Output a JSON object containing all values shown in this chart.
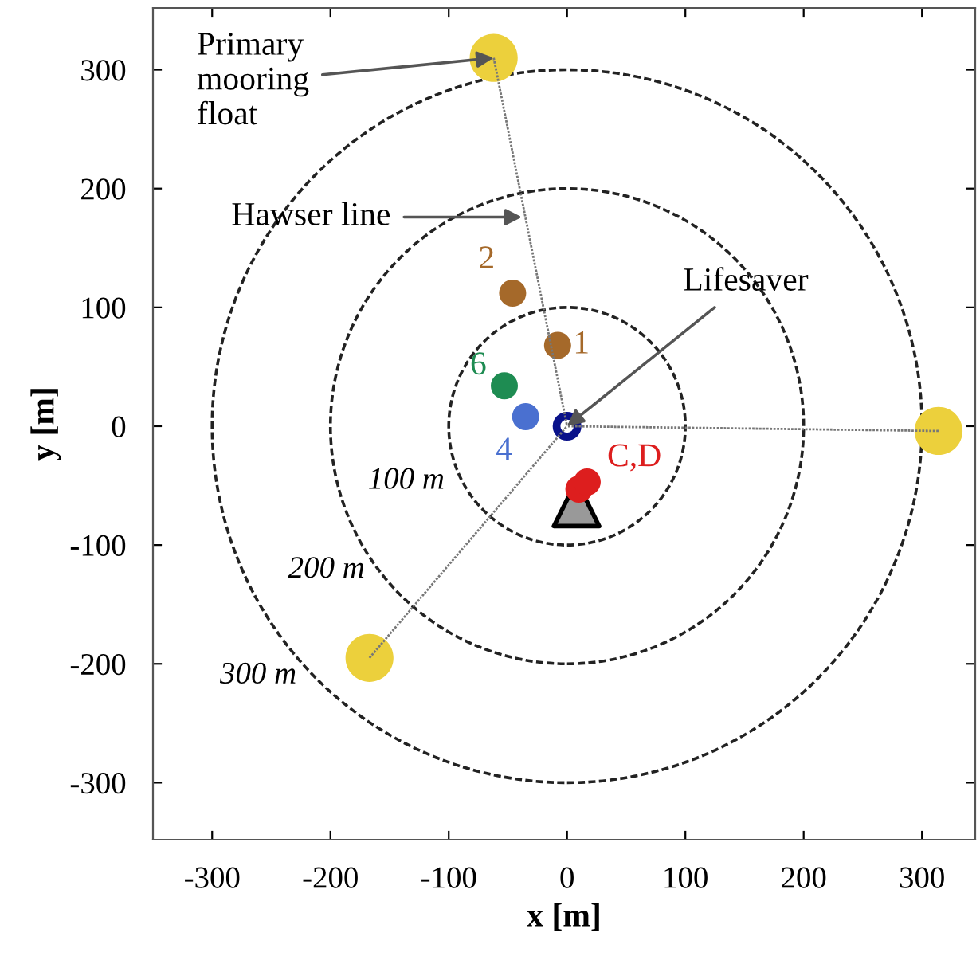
{
  "chart_data": {
    "type": "scatter",
    "xlabel": "x [m]",
    "ylabel": "y [m]",
    "xlim": [
      -350,
      345
    ],
    "ylim": [
      -348,
      352
    ],
    "xticks": [
      -300,
      -200,
      -100,
      0,
      100,
      200,
      300
    ],
    "yticks": [
      -300,
      -200,
      -100,
      0,
      100,
      200,
      300
    ],
    "series": [
      {
        "type": "line",
        "color": "#777777",
        "line_style": "dotted",
        "x": [
          -62,
          0
        ],
        "values": [
          310,
          0
        ]
      },
      {
        "type": "line",
        "color": "#777777",
        "line_style": "dotted",
        "x": [
          314,
          0
        ],
        "values": [
          -4,
          0
        ]
      },
      {
        "type": "line",
        "color": "#777777",
        "line_style": "dotted",
        "x": [
          -167,
          0
        ],
        "values": [
          -195,
          0
        ]
      },
      {
        "color": "#ecd03c",
        "marker": "circle",
        "x": [
          -62,
          314,
          -167
        ],
        "values": [
          310,
          -4,
          -195
        ]
      },
      {
        "name": "1",
        "color": "#a5692a",
        "marker": "circle",
        "x": [
          -8
        ],
        "values": [
          68
        ]
      },
      {
        "name": "2",
        "color": "#a5692a",
        "marker": "circle",
        "x": [
          -46
        ],
        "values": [
          112
        ]
      },
      {
        "name": "6",
        "color": "#1e8c52",
        "marker": "circle",
        "x": [
          -53
        ],
        "values": [
          34
        ]
      },
      {
        "name": "4",
        "color": "#4a70d0",
        "marker": "circle",
        "x": [
          -35
        ],
        "values": [
          8
        ]
      },
      {
        "name": "C,D",
        "color": "#dd1e1e",
        "marker": "circle",
        "x": [
          10,
          17
        ],
        "values": [
          -53,
          -47
        ]
      },
      {
        "color": "#0a128a",
        "marker": "circle",
        "x": [
          0
        ],
        "values": [
          0
        ]
      },
      {
        "color": "#999999",
        "marker": "triangle",
        "x": [
          8
        ],
        "values": [
          -65
        ]
      }
    ],
    "annotations": [
      {
        "text": "Primary\nmooring\nfloat",
        "x": -62,
        "y": 310
      },
      {
        "text": "Hawser line",
        "x": -38,
        "y": 176
      },
      {
        "text": "Lifesaver",
        "x": 0,
        "y": 0
      },
      "100 m",
      "200 m",
      "300 m"
    ]
  }
}
